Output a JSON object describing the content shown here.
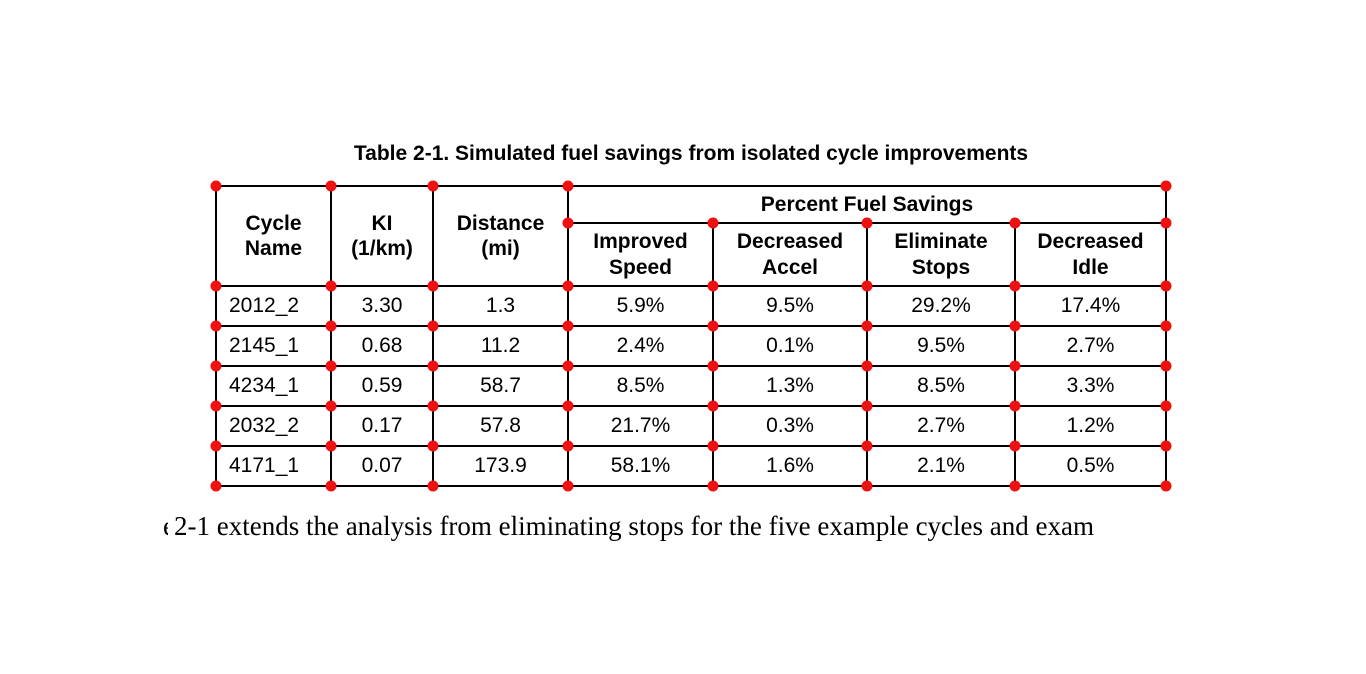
{
  "colors": {
    "marker_red": "#ef1010",
    "table_border": "#000000",
    "text": "#000000",
    "background": "#ffffff"
  },
  "chart_data": {
    "type": "table",
    "title": "Table 2-1. Simulated fuel savings from isolated cycle improvements",
    "group_header": "Percent Fuel Savings",
    "columns": [
      "Cycle\nName",
      "KI\n(1/km)",
      "Distance\n(mi)",
      "Improved\nSpeed",
      "Decreased\nAccel",
      "Eliminate\nStops",
      "Decreased\nIdle"
    ],
    "rows": [
      [
        "2012_2",
        "3.30",
        "1.3",
        "5.9%",
        "9.5%",
        "29.2%",
        "17.4%"
      ],
      [
        "2145_1",
        "0.68",
        "11.2",
        "2.4%",
        "0.1%",
        "9.5%",
        "2.7%"
      ],
      [
        "4234_1",
        "0.59",
        "58.7",
        "8.5%",
        "1.3%",
        "8.5%",
        "3.3%"
      ],
      [
        "2032_2",
        "0.17",
        "57.8",
        "21.7%",
        "0.3%",
        "2.7%",
        "1.2%"
      ],
      [
        "4171_1",
        "0.07",
        "173.9",
        "58.1%",
        "1.6%",
        "2.1%",
        "0.5%"
      ]
    ]
  },
  "body_text": {
    "leading_fragment": "e",
    "line": "2-1 extends the analysis from eliminating stops for the five example cycles and exam"
  }
}
